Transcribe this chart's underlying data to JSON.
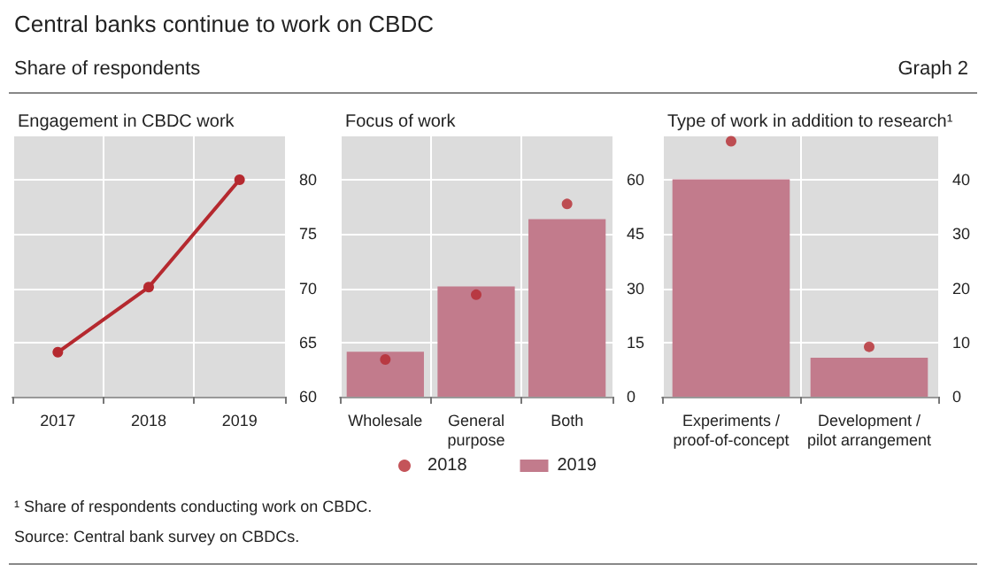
{
  "chart_data": [
    {
      "type": "other",
      "title": "Central banks continue to work on CBDC",
      "subtitle": "Share of respondents",
      "annotations": [
        "Graph 2",
        "¹  Share of respondents conducting work on CBDC.",
        "Source: Central bank survey on CBDCs."
      ]
    },
    {
      "type": "line",
      "title": "Engagement in CBDC work",
      "categories": [
        "2017",
        "2018",
        "2019"
      ],
      "series": [
        {
          "color": "#b5292f",
          "values": [
            64.1,
            70.1,
            80
          ]
        }
      ],
      "ylim": [
        60,
        84
      ],
      "yticks": [
        60,
        65,
        70,
        75,
        80
      ],
      "grid": true,
      "marker": "circle",
      "line_style": "solid"
    },
    {
      "type": "bar",
      "title": "Focus of work",
      "categories": [
        "Wholesale",
        "General\npurpose",
        "Both"
      ],
      "series": [
        {
          "name": "2018",
          "type": "scatter",
          "color": "#b5292f",
          "x": [
            "Wholesale",
            "General\npurpose",
            "Both"
          ],
          "values": [
            10.3,
            28.2,
            53.3
          ]
        },
        {
          "name": "2019",
          "color": "#c27b8c",
          "values": [
            12.4,
            30.5,
            49.1
          ]
        }
      ],
      "ylim": [
        0,
        72
      ],
      "yticks": [
        0,
        15,
        30,
        45,
        60
      ],
      "grid": true,
      "legend": "bottom"
    },
    {
      "type": "bar",
      "title": "Type of work in addition to research¹",
      "categories": [
        "Experiments /\nproof-of-concept",
        "Development /\npilot arrangement"
      ],
      "series": [
        {
          "type": "scatter",
          "color": "#b5292f",
          "x": [
            "Experiments /\nproof-of-concept",
            "Development /\npilot arrangement"
          ],
          "values": [
            47.1,
            9.2
          ]
        },
        {
          "color": "#c27b8c",
          "values": [
            40.1,
            7.2
          ]
        }
      ],
      "ylim": [
        0,
        48
      ],
      "yticks": [
        0,
        10,
        20,
        30,
        40
      ],
      "grid": true
    }
  ]
}
